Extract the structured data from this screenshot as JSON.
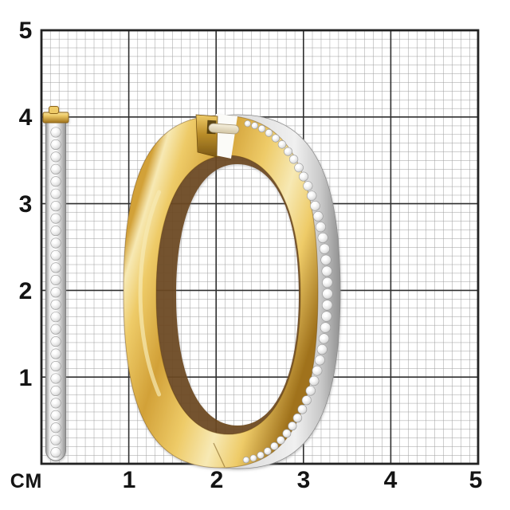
{
  "grid": {
    "unit_label": "СМ",
    "x_labels": [
      "1",
      "2",
      "3",
      "4",
      "5"
    ],
    "y_labels": [
      "5",
      "4",
      "3",
      "2",
      "1"
    ],
    "cm_range": [
      0,
      5
    ],
    "minor_divisions_per_cm": 10,
    "colors": {
      "background": "#ffffff",
      "minor_line": "#9d9d9d",
      "major_line": "#2f2f2f",
      "border": "#222222",
      "label": "#141414"
    }
  },
  "earring": {
    "side_view_stones": 27,
    "colors": {
      "gold_highlight": "#f7e9b4",
      "gold_light": "#eecb68",
      "gold_base": "#d2a138",
      "gold_deep": "#a0721c",
      "gold_shadow": "#6a4410",
      "white_gold_light": "#f0f0f0",
      "white_gold_base": "#c9c9c9",
      "white_gold_dark": "#8f8f8f",
      "white_gold_edge": "#7e7e7e",
      "diamond": "#ffffff",
      "diamond_edge": "#9a9a9a",
      "pin_light": "#f6f0dd",
      "pin_dark": "#cfc2a0",
      "pin_edge": "#a8997a"
    }
  }
}
